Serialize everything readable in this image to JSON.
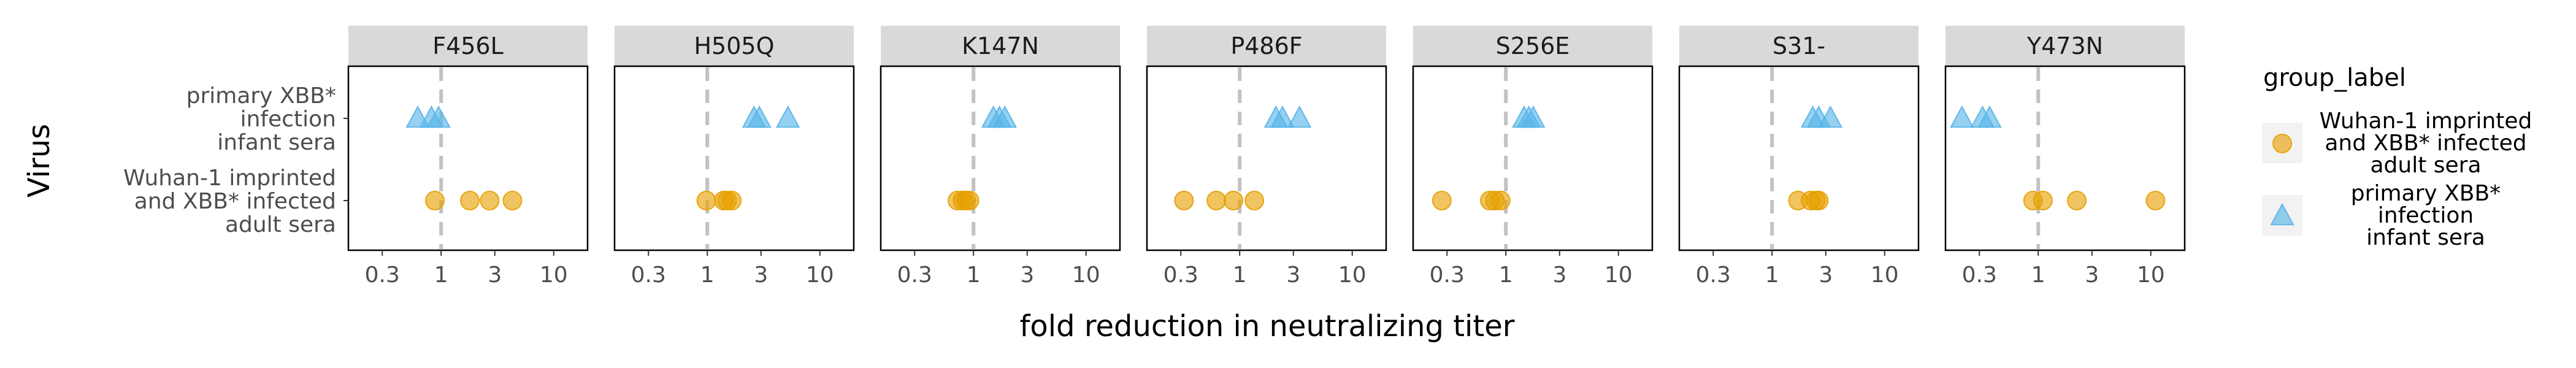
{
  "chart_data": {
    "type": "scatter",
    "xlabel": "fold reduction in neutralizing titer",
    "ylabel": "Virus",
    "x_scale": "log10",
    "xlim": [
      0.15,
      20
    ],
    "x_ticks": [
      0.3,
      1,
      3,
      10
    ],
    "x_tick_labels": [
      "0.3",
      "1",
      "3",
      "10"
    ],
    "reference_x": 1,
    "y_categories": [
      "primary XBB*\ninfection\ninfant sera",
      "Wuhan-1 imprinted\nand XBB* infected\nadult sera"
    ],
    "legend": {
      "title": "group_label",
      "placement": "right",
      "entries": [
        {
          "label": "Wuhan-1 imprinted\nand XBB* infected\nadult sera",
          "color": "#E69F00",
          "shape": "circle"
        },
        {
          "label": "primary XBB*\ninfection\ninfant sera",
          "color": "#56B4E9",
          "shape": "triangle"
        }
      ]
    },
    "panels": [
      {
        "facet": "F456L",
        "points": [
          {
            "series": 1,
            "x": 0.62
          },
          {
            "series": 1,
            "x": 0.82
          },
          {
            "series": 1,
            "x": 0.95
          },
          {
            "series": 0,
            "x": 0.88
          },
          {
            "series": 0,
            "x": 1.8
          },
          {
            "series": 0,
            "x": 2.7
          },
          {
            "series": 0,
            "x": 4.3
          }
        ]
      },
      {
        "facet": "H505Q",
        "points": [
          {
            "series": 1,
            "x": 2.6
          },
          {
            "series": 1,
            "x": 2.9
          },
          {
            "series": 1,
            "x": 5.2
          },
          {
            "series": 0,
            "x": 0.98
          },
          {
            "series": 0,
            "x": 1.4
          },
          {
            "series": 0,
            "x": 1.5
          },
          {
            "series": 0,
            "x": 1.65
          }
        ]
      },
      {
        "facet": "K147N",
        "points": [
          {
            "series": 1,
            "x": 1.5
          },
          {
            "series": 1,
            "x": 1.7
          },
          {
            "series": 1,
            "x": 1.9
          },
          {
            "series": 0,
            "x": 0.72
          },
          {
            "series": 0,
            "x": 0.8
          },
          {
            "series": 0,
            "x": 0.86
          },
          {
            "series": 0,
            "x": 0.92
          }
        ]
      },
      {
        "facet": "P486F",
        "points": [
          {
            "series": 1,
            "x": 2.1
          },
          {
            "series": 1,
            "x": 2.4
          },
          {
            "series": 1,
            "x": 3.4
          },
          {
            "series": 0,
            "x": 0.32
          },
          {
            "series": 0,
            "x": 0.62
          },
          {
            "series": 0,
            "x": 0.88
          },
          {
            "series": 0,
            "x": 1.35
          }
        ]
      },
      {
        "facet": "S256E",
        "points": [
          {
            "series": 1,
            "x": 1.45
          },
          {
            "series": 1,
            "x": 1.6
          },
          {
            "series": 1,
            "x": 1.75
          },
          {
            "series": 0,
            "x": 0.27
          },
          {
            "series": 0,
            "x": 0.72
          },
          {
            "series": 0,
            "x": 0.8
          },
          {
            "series": 0,
            "x": 0.9
          }
        ]
      },
      {
        "facet": "S31-",
        "points": [
          {
            "series": 1,
            "x": 2.3
          },
          {
            "series": 1,
            "x": 2.6
          },
          {
            "series": 1,
            "x": 3.3
          },
          {
            "series": 0,
            "x": 1.7
          },
          {
            "series": 0,
            "x": 2.2
          },
          {
            "series": 0,
            "x": 2.45
          },
          {
            "series": 0,
            "x": 2.6
          }
        ]
      },
      {
        "facet": "Y473N",
        "points": [
          {
            "series": 1,
            "x": 0.21
          },
          {
            "series": 1,
            "x": 0.32
          },
          {
            "series": 1,
            "x": 0.37
          },
          {
            "series": 0,
            "x": 0.9
          },
          {
            "series": 0,
            "x": 1.1
          },
          {
            "series": 0,
            "x": 2.2
          },
          {
            "series": 0,
            "x": 11
          }
        ]
      }
    ]
  }
}
